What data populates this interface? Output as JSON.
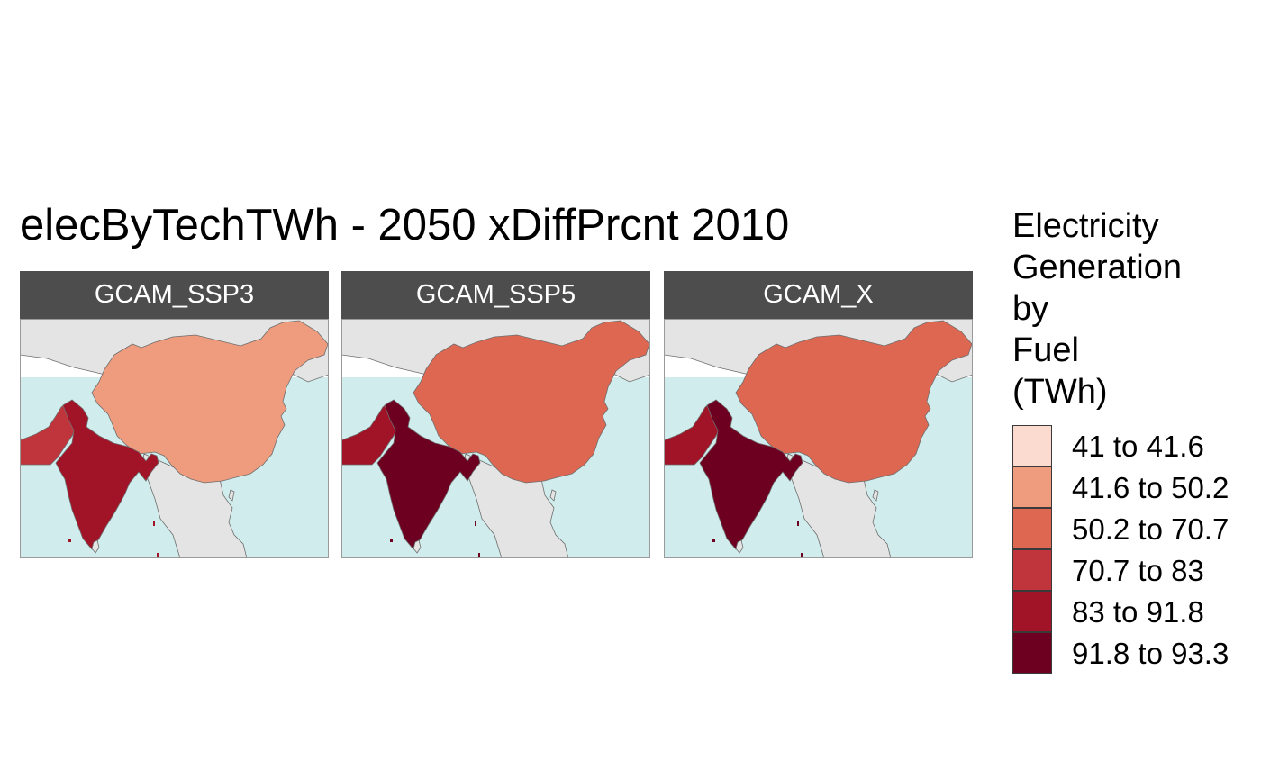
{
  "title": "elecByTechTWh - 2050 xDiffPrcnt 2010",
  "legend": {
    "title_lines": [
      "Electricity",
      "Generation",
      "by",
      "Fuel",
      "(TWh)"
    ],
    "items": [
      {
        "label": "41 to 41.6",
        "color": "#fbdad0"
      },
      {
        "label": "41.6 to 50.2",
        "color": "#ef9c7e"
      },
      {
        "label": "50.2 to 70.7",
        "color": "#de6752"
      },
      {
        "label": "70.7 to 83",
        "color": "#c0343c"
      },
      {
        "label": "83 to 91.8",
        "color": "#a11327"
      },
      {
        "label": "91.8 to 93.3",
        "color": "#6d0021"
      }
    ]
  },
  "colors": {
    "land": "#e4e4e4",
    "ocean": "#d0ecec",
    "border": "#6e6e6e",
    "strip": "#4d4d4d"
  },
  "panels": [
    {
      "label": "GCAM_SSP3",
      "regions": {
        "china": "41.6 to 50.2",
        "pakistan": "70.7 to 83",
        "india": "83 to 91.8"
      }
    },
    {
      "label": "GCAM_SSP5",
      "regions": {
        "china": "50.2 to 70.7",
        "pakistan": "83 to 91.8",
        "india": "91.8 to 93.3"
      }
    },
    {
      "label": "GCAM_X",
      "regions": {
        "china": "50.2 to 70.7",
        "pakistan": "83 to 91.8",
        "india": "91.8 to 93.3"
      }
    }
  ]
}
